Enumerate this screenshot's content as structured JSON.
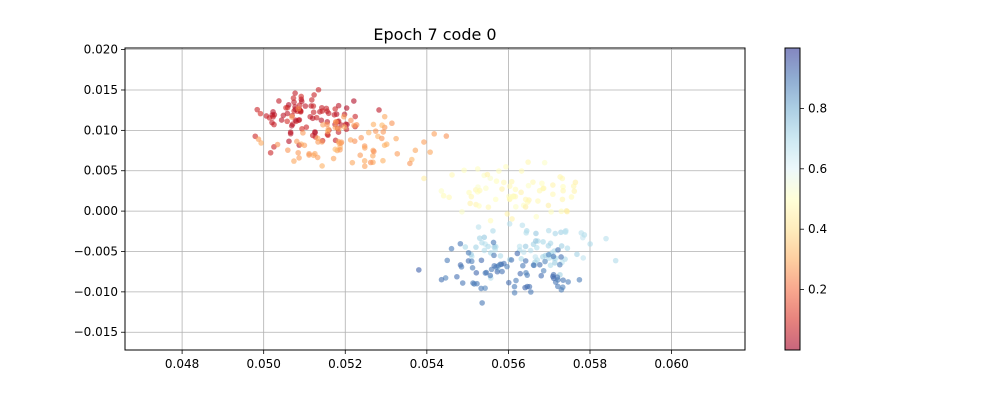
{
  "chart_data": {
    "type": "scatter",
    "title": "Epoch 7 code 0",
    "xlabel": "",
    "ylabel": "",
    "xlim": [
      0.0466,
      0.0618
    ],
    "ylim": [
      -0.0172,
      0.0202
    ],
    "x_ticks": [
      0.048,
      0.05,
      0.052,
      0.054,
      0.056,
      0.058,
      0.06
    ],
    "x_tick_labels": [
      "0.048",
      "0.050",
      "0.052",
      "0.054",
      "0.056",
      "0.058",
      "0.060"
    ],
    "y_ticks": [
      -0.015,
      -0.01,
      -0.005,
      0.0,
      0.005,
      0.01,
      0.015,
      0.02
    ],
    "y_tick_labels": [
      "−0.015",
      "−0.010",
      "−0.005",
      "0.000",
      "0.005",
      "0.010",
      "0.015",
      "0.020"
    ],
    "grid": true,
    "colormap": "RdYlBu",
    "colorbar": {
      "range": [
        0.0,
        1.0
      ],
      "ticks": [
        0.2,
        0.4,
        0.6,
        0.8
      ],
      "tick_labels": [
        "0.2",
        "0.4",
        "0.6",
        "0.8"
      ]
    },
    "marker_alpha": 0.6
  }
}
